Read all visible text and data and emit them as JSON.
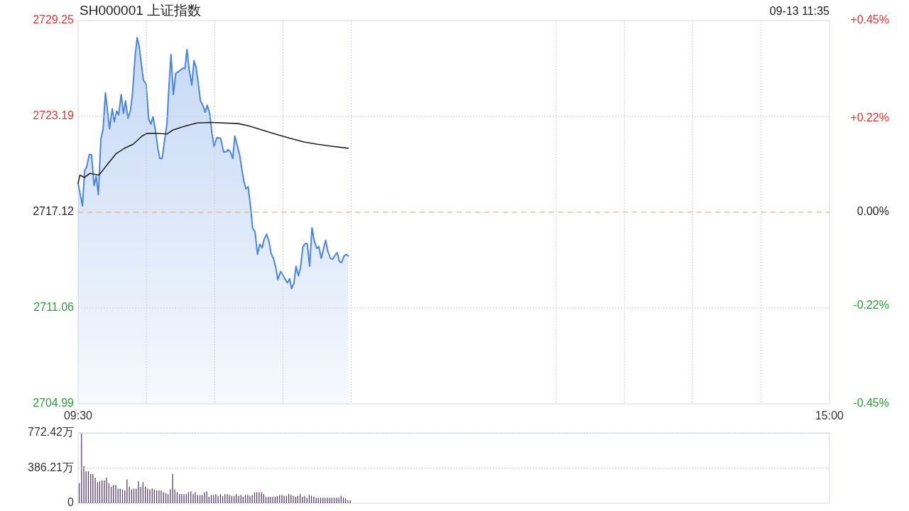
{
  "chart_data": [
    {
      "type": "area",
      "title": "SH000001 上证指数",
      "annotations": [
        "09-13 11:35"
      ],
      "xlim": [
        9.5,
        15
      ],
      "xticks": [
        {
          "value": 9.5,
          "label": "09:30"
        },
        {
          "value": 10,
          "label": null
        },
        {
          "value": 10.5,
          "label": null
        },
        {
          "value": 11,
          "label": null
        },
        {
          "value": 11.5,
          "label": null
        },
        {
          "value": 13,
          "label": null
        },
        {
          "value": 13.5,
          "label": null
        },
        {
          "value": 14,
          "label": null
        },
        {
          "value": 14.5,
          "label": null
        },
        {
          "value": 15,
          "label": "15:00"
        }
      ],
      "ylim": [
        2704.99,
        2729.25
      ],
      "yticks": [
        2704.99,
        2711.06,
        2717.12,
        2723.19,
        2729.25
      ],
      "y2lim": [
        -0.45,
        0.45
      ],
      "y2ticks": [
        {
          "value": -0.45,
          "label": "-0.45%"
        },
        {
          "value": -0.22,
          "label": "-0.22%"
        },
        {
          "value": 0,
          "label": "0.00%"
        },
        {
          "value": 0.22,
          "label": "+0.22%"
        },
        {
          "value": 0.45,
          "label": "+0.45%"
        }
      ],
      "grid": true,
      "ref_lines": [
        {
          "axis": "y",
          "value": 2717.12,
          "color": "#f0a050",
          "line_style": "dashed"
        }
      ],
      "series": [
        {
          "color": "#4a86e0",
          "x": [
            9.5,
            9.532,
            9.548,
            9.563,
            9.582,
            9.598,
            9.617,
            9.632,
            9.648,
            9.667,
            9.683,
            9.7,
            9.73,
            9.75,
            9.765,
            9.782,
            9.797,
            9.815,
            9.832,
            9.847,
            9.865,
            9.882,
            9.897,
            9.917,
            9.932,
            9.947,
            9.963,
            9.978,
            9.998,
            10.017,
            10.033,
            10.048,
            10.067,
            10.083,
            10.098,
            10.115,
            10.13,
            10.15,
            10.165,
            10.18,
            10.197,
            10.215,
            10.243,
            10.268,
            10.282,
            10.297,
            10.313,
            10.332,
            10.348,
            10.363,
            10.38,
            10.395,
            10.413,
            10.43,
            10.445,
            10.463,
            10.48,
            10.495,
            10.515,
            10.543,
            10.565,
            10.582,
            10.598,
            10.615,
            10.632,
            10.647,
            10.665,
            10.682,
            10.697,
            10.713,
            10.728,
            10.745,
            10.763,
            10.778,
            10.795,
            10.813,
            10.83,
            10.847,
            10.862,
            10.88,
            10.897,
            10.913,
            10.93,
            10.947,
            10.962,
            10.982,
            10.997,
            11.015,
            11.032,
            11.048,
            11.063,
            11.08,
            11.095,
            11.113,
            11.128,
            11.145,
            11.162,
            11.177,
            11.195,
            11.212,
            11.227,
            11.247,
            11.262,
            11.28,
            11.297,
            11.312,
            11.327,
            11.347,
            11.363,
            11.38,
            11.397,
            11.413,
            11.428,
            11.447,
            11.463,
            11.477
          ],
          "values": [
            2718.95,
            2717.52,
            2719.77,
            2720.0,
            2720.78,
            2720.76,
            2718.8,
            2719.41,
            2718.24,
            2721.8,
            2722.39,
            2724.67,
            2722.39,
            2723.67,
            2722.84,
            2723.52,
            2723.29,
            2724.57,
            2723.37,
            2724.17,
            2723.07,
            2723.52,
            2724.49,
            2726.97,
            2728.17,
            2727.64,
            2726.52,
            2725.47,
            2725.24,
            2723.0,
            2722.7,
            2723.18,
            2722.25,
            2721.2,
            2720.52,
            2720.52,
            2721.49,
            2722.7,
            2725.09,
            2727.11,
            2724.57,
            2725.92,
            2726.07,
            2726.25,
            2726.22,
            2727.42,
            2726.14,
            2725.17,
            2726.71,
            2726.29,
            2725.24,
            2724.19,
            2723.89,
            2723.45,
            2723.89,
            2723.37,
            2722.1,
            2721.27,
            2721.84,
            2721.8,
            2720.94,
            2720.94,
            2721.09,
            2720.94,
            2720.52,
            2721.94,
            2721.35,
            2720.75,
            2719.92,
            2719.1,
            2718.6,
            2718.73,
            2717.38,
            2716.1,
            2715.88,
            2714.45,
            2715.1,
            2714.86,
            2715.42,
            2715.73,
            2715.28,
            2714.5,
            2714.2,
            2713.63,
            2712.85,
            2713.36,
            2713.18,
            2712.88,
            2712.65,
            2712.91,
            2712.28,
            2712.65,
            2713.7,
            2713.1,
            2713.63,
            2714.9,
            2715.13,
            2715.13,
            2713.7,
            2716.14,
            2715.35,
            2714.83,
            2714.95,
            2714.2,
            2714.83,
            2715.35,
            2714.68,
            2714.2,
            2714.15,
            2714.38,
            2714.56,
            2714.0,
            2713.93,
            2714.35,
            2714.45,
            2714.35
          ]
        },
        {
          "type": "line",
          "color": "#222222",
          "x": [
            9.5,
            9.513,
            9.545,
            9.588,
            9.652,
            9.688,
            9.715,
            9.777,
            9.84,
            9.903,
            9.967,
            10.003,
            10.067,
            10.15,
            10.193,
            10.282,
            10.37,
            10.47,
            10.672,
            10.748,
            10.848,
            10.95,
            11.05,
            11.152,
            11.252,
            11.353,
            11.477
          ],
          "values": [
            2718.95,
            2719.47,
            2719.32,
            2719.58,
            2719.47,
            2719.85,
            2720.15,
            2720.82,
            2721.17,
            2721.42,
            2721.94,
            2722.1,
            2722.12,
            2722.07,
            2722.32,
            2722.57,
            2722.77,
            2722.8,
            2722.73,
            2722.59,
            2722.32,
            2722.05,
            2721.8,
            2721.57,
            2721.42,
            2721.3,
            2721.17
          ]
        }
      ]
    },
    {
      "type": "bar",
      "xlim": [
        9.5,
        15
      ],
      "ylim": [
        0,
        772.42
      ],
      "yticks": [
        0,
        {
          "value": 386.21,
          "label": "386.21万"
        },
        {
          "value": 772.42,
          "label": "772.42万"
        }
      ],
      "grid": "y",
      "tick_labels": "y",
      "x": [
        9.508,
        9.525,
        9.542,
        9.558,
        9.575,
        9.592,
        9.608,
        9.625,
        9.642,
        9.658,
        9.675,
        9.692,
        9.708,
        9.725,
        9.742,
        9.758,
        9.775,
        9.792,
        9.808,
        9.825,
        9.842,
        9.858,
        9.875,
        9.892,
        9.908,
        9.925,
        9.942,
        9.958,
        9.975,
        9.992,
        10.008,
        10.025,
        10.042,
        10.058,
        10.075,
        10.092,
        10.108,
        10.125,
        10.142,
        10.158,
        10.175,
        10.192,
        10.208,
        10.225,
        10.242,
        10.258,
        10.275,
        10.292,
        10.308,
        10.325,
        10.342,
        10.358,
        10.375,
        10.392,
        10.408,
        10.425,
        10.442,
        10.458,
        10.475,
        10.492,
        10.508,
        10.525,
        10.542,
        10.558,
        10.575,
        10.592,
        10.608,
        10.625,
        10.642,
        10.658,
        10.675,
        10.692,
        10.708,
        10.725,
        10.742,
        10.758,
        10.775,
        10.792,
        10.808,
        10.825,
        10.842,
        10.858,
        10.875,
        10.892,
        10.908,
        10.925,
        10.942,
        10.958,
        10.975,
        10.992,
        11.008,
        11.025,
        11.042,
        11.058,
        11.075,
        11.092,
        11.108,
        11.125,
        11.142,
        11.158,
        11.175,
        11.192,
        11.208,
        11.225,
        11.242,
        11.258,
        11.275,
        11.292,
        11.308,
        11.325,
        11.342,
        11.358,
        11.375,
        11.392,
        11.408,
        11.425,
        11.442,
        11.458,
        11.475,
        11.492
      ],
      "series": [
        {
          "color": "#55386a",
          "values": [
            220,
            770,
            410,
            350,
            350,
            320,
            320,
            280,
            230,
            240,
            250,
            250,
            280,
            220,
            180,
            200,
            200,
            160,
            160,
            150,
            140,
            260,
            180,
            150,
            160,
            160,
            240,
            180,
            230,
            180,
            160,
            150,
            160,
            150,
            140,
            140,
            140,
            120,
            110,
            100,
            150,
            320,
            150,
            120,
            100,
            100,
            100,
            100,
            120,
            130,
            100,
            120,
            90,
            90,
            90,
            120,
            130,
            70,
            90,
            90,
            100,
            80,
            100,
            80,
            100,
            100,
            90,
            80,
            80,
            100,
            80,
            90,
            70,
            90,
            90,
            80,
            90,
            120,
            120,
            120,
            120,
            100,
            70,
            70,
            70,
            70,
            70,
            80,
            90,
            90,
            80,
            80,
            100,
            90,
            80,
            70,
            80,
            100,
            70,
            80,
            60,
            90,
            80,
            70,
            60,
            60,
            60,
            60,
            60,
            60,
            60,
            60,
            60,
            60,
            60,
            80,
            60,
            50,
            30,
            30
          ]
        }
      ]
    }
  ]
}
